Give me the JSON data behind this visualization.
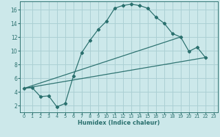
{
  "xlabel": "Humidex (Indice chaleur)",
  "background_color": "#cce8ea",
  "grid_color": "#aacfd3",
  "line_color": "#2a706e",
  "xlim": [
    -0.5,
    23.5
  ],
  "ylim": [
    1.0,
    17.2
  ],
  "xticks": [
    0,
    1,
    2,
    3,
    4,
    5,
    6,
    7,
    8,
    9,
    10,
    11,
    12,
    13,
    14,
    15,
    16,
    17,
    18,
    19,
    20,
    21,
    22,
    23
  ],
  "yticks": [
    2,
    4,
    6,
    8,
    10,
    12,
    14,
    16
  ],
  "curve1_x": [
    0,
    1,
    2,
    3,
    4,
    5,
    6,
    7,
    8,
    9,
    10,
    11,
    12,
    13,
    14,
    15,
    16,
    17,
    18,
    19,
    20,
    21,
    22
  ],
  "curve1_y": [
    4.5,
    4.6,
    3.3,
    3.4,
    1.8,
    2.3,
    6.3,
    9.7,
    11.5,
    13.1,
    14.3,
    16.2,
    16.6,
    16.8,
    16.6,
    16.2,
    14.9,
    14.0,
    12.5,
    12.0,
    9.9,
    10.5,
    9.0
  ],
  "line1_x": [
    0,
    22
  ],
  "line1_y": [
    4.5,
    9.0
  ],
  "line2_x": [
    0,
    19
  ],
  "line2_y": [
    4.5,
    12.0
  ]
}
